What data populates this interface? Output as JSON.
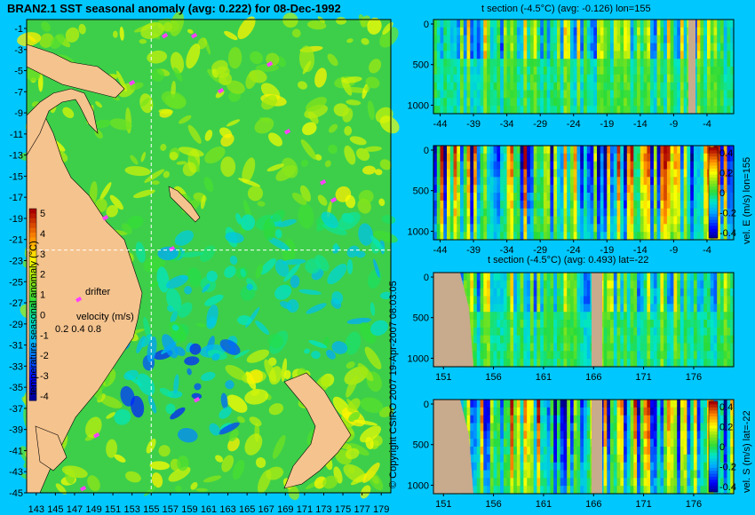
{
  "chart_data": [
    {
      "id": "map",
      "type": "heatmap",
      "title": "BRAN2.1 SST seasonal anomaly (avg: 0.222) for 08-Dec-1992",
      "x_ticks": [
        "143",
        "145",
        "147",
        "149",
        "151",
        "153",
        "155",
        "157",
        "159",
        "161",
        "163",
        "165",
        "167",
        "169",
        "171",
        "173",
        "175",
        "177",
        "179"
      ],
      "y_ticks": [
        "-1",
        "-3",
        "-5",
        "-7",
        "-9",
        "-11",
        "-13",
        "-15",
        "-17",
        "-19",
        "-21",
        "-23",
        "-25",
        "-27",
        "-29",
        "-31",
        "-33",
        "-35",
        "-37",
        "-39",
        "-41",
        "-43",
        "-45"
      ],
      "xlim": [
        142,
        180
      ],
      "ylim": [
        -45,
        0
      ],
      "crosshair": {
        "lon": 155,
        "lat": -22
      },
      "colorbar": {
        "label": "temperature seasonal anomaly (°C)",
        "ticks": [
          "5",
          "4",
          "3",
          "2",
          "1",
          "0",
          "-1",
          "-2",
          "-3",
          "-4"
        ],
        "range": [
          -4,
          5
        ]
      },
      "legend": {
        "drifter_label": "drifter",
        "velocity_label": "velocity (m/s)",
        "velocity_values": "0.2  0.4  0.8"
      }
    },
    {
      "id": "t_lon",
      "type": "heatmap",
      "title": "t section (-4.5°C) (avg: -0.126) lon=155",
      "x_ticks": [
        "-44",
        "-39",
        "-34",
        "-29",
        "-24",
        "-19",
        "-14",
        "-9",
        "-4"
      ],
      "y_ticks": [
        "0",
        "500",
        "1000"
      ],
      "xlim": [
        -45,
        0
      ],
      "ylim": [
        0,
        1050
      ]
    },
    {
      "id": "u_lon",
      "type": "heatmap",
      "title": "",
      "x_ticks": [
        "-44",
        "-39",
        "-34",
        "-29",
        "-24",
        "-19",
        "-14",
        "-9",
        "-4"
      ],
      "y_ticks": [
        "0",
        "500",
        "1000"
      ],
      "xlim": [
        -45,
        0
      ],
      "ylim": [
        0,
        1050
      ],
      "colorbar": {
        "label": "vel. E (m/s) lon=155",
        "ticks": [
          "0.4",
          "0.2",
          "0",
          "-0.2",
          "-0.4"
        ],
        "range": [
          -0.4,
          0.4
        ]
      }
    },
    {
      "id": "t_lat",
      "type": "heatmap",
      "title": "t section (-4.5°C) (avg: 0.493) lat=-22",
      "x_ticks": [
        "151",
        "156",
        "161",
        "166",
        "171",
        "176"
      ],
      "y_ticks": [
        "0",
        "500",
        "1000"
      ],
      "xlim": [
        150,
        180
      ],
      "ylim": [
        0,
        1050
      ]
    },
    {
      "id": "v_lat",
      "type": "heatmap",
      "title": "",
      "x_ticks": [
        "151",
        "156",
        "161",
        "166",
        "171",
        "176"
      ],
      "y_ticks": [
        "0",
        "500",
        "1000"
      ],
      "xlim": [
        150,
        180
      ],
      "ylim": [
        0,
        1050
      ],
      "colorbar": {
        "label": "vel. S (m/s) lat=-22",
        "ticks": [
          "0.4",
          "0.2",
          "0",
          "-0.2",
          "-0.4"
        ],
        "range": [
          -0.4,
          0.4
        ]
      }
    }
  ],
  "watermark": "© Copyright CSIRO 2007  19-Apr-2007 08:03:05",
  "colors": {
    "background": "#00c8ff",
    "land": "#f5c38e",
    "section_land": "#c8aa8c",
    "crosshair": "#ffffff",
    "drifter": "#ff40ff"
  }
}
